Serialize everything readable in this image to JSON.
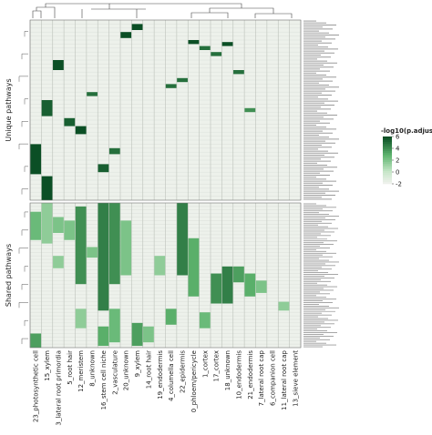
{
  "chart_data": {
    "type": "heatmap",
    "title": "",
    "xlabel": "",
    "ylabel": "",
    "x_categories": [
      "23_photosynthetic cell",
      "15_xylem",
      "3_lateral root primordia",
      "5_root hair",
      "12_meristem",
      "8_unknown",
      "16_stem cell niche",
      "2_vasculature",
      "20_unknown",
      "9_xylem",
      "14_root hair",
      "19_endodermis",
      "4_columella cell",
      "22_epidermis",
      "0_phloem/pericycle",
      "1_cortex",
      "17_cortex",
      "18_unknown",
      "10_endodermis",
      "21_endodermis",
      "7_lateral root cap",
      "6_companion cell",
      "11_lateral root cap",
      "13_sieve element"
    ],
    "row_groups": [
      {
        "label": "Unique pathways",
        "row_count": 90
      },
      {
        "label": "Shared pathways",
        "row_count": 82
      }
    ],
    "legend": {
      "title": "-log10(p.adjust)",
      "ticks": [
        6,
        4,
        2,
        0,
        -2
      ],
      "range": [
        -2,
        6
      ],
      "colors": {
        "high": "#0b4f25",
        "mid": "#5fb56f",
        "low": "#c6e6c8",
        "base": "#edf1eb"
      },
      "placement": "right"
    },
    "unique_cells": [
      {
        "col": 0,
        "rows": [
          62,
          76
        ],
        "value": 6
      },
      {
        "col": 1,
        "rows": [
          40,
          47
        ],
        "value": 5.5
      },
      {
        "col": 1,
        "rows": [
          78,
          89
        ],
        "value": 6
      },
      {
        "col": 2,
        "rows": [
          20,
          24
        ],
        "value": 6
      },
      {
        "col": 3,
        "rows": [
          49,
          52
        ],
        "value": 5.5
      },
      {
        "col": 4,
        "rows": [
          53,
          56
        ],
        "value": 6
      },
      {
        "col": 5,
        "rows": [
          36,
          37
        ],
        "value": 5
      },
      {
        "col": 6,
        "rows": [
          72,
          75
        ],
        "value": 5.5
      },
      {
        "col": 7,
        "rows": [
          64,
          66
        ],
        "value": 5
      },
      {
        "col": 8,
        "rows": [
          6,
          8
        ],
        "value": 6
      },
      {
        "col": 9,
        "rows": [
          2,
          4
        ],
        "value": 6
      },
      {
        "col": 12,
        "rows": [
          32,
          33
        ],
        "value": 5
      },
      {
        "col": 13,
        "rows": [
          29,
          30
        ],
        "value": 5
      },
      {
        "col": 14,
        "rows": [
          10,
          11
        ],
        "value": 6
      },
      {
        "col": 15,
        "rows": [
          13,
          14
        ],
        "value": 5
      },
      {
        "col": 16,
        "rows": [
          16,
          17
        ],
        "value": 5
      },
      {
        "col": 17,
        "rows": [
          11,
          12
        ],
        "value": 6
      },
      {
        "col": 18,
        "rows": [
          25,
          26
        ],
        "value": 5
      },
      {
        "col": 19,
        "rows": [
          44,
          45
        ],
        "value": 4
      }
    ],
    "shared_cells": [
      {
        "col": 0,
        "rows": [
          5,
          20
        ],
        "value": 2.5
      },
      {
        "col": 0,
        "rows": [
          74,
          81
        ],
        "value": 3.5
      },
      {
        "col": 1,
        "rows": [
          0,
          22
        ],
        "value": 1.5
      },
      {
        "col": 2,
        "rows": [
          8,
          16
        ],
        "value": 2
      },
      {
        "col": 2,
        "rows": [
          30,
          36
        ],
        "value": 1.5
      },
      {
        "col": 3,
        "rows": [
          10,
          20
        ],
        "value": 2
      },
      {
        "col": 4,
        "rows": [
          2,
          45
        ],
        "value": 4
      },
      {
        "col": 4,
        "rows": [
          60,
          70
        ],
        "value": 1.5
      },
      {
        "col": 5,
        "rows": [
          25,
          30
        ],
        "value": 2
      },
      {
        "col": 6,
        "rows": [
          0,
          60
        ],
        "value": 4.5
      },
      {
        "col": 6,
        "rows": [
          70,
          80
        ],
        "value": 3
      },
      {
        "col": 7,
        "rows": [
          0,
          45
        ],
        "value": 4
      },
      {
        "col": 7,
        "rows": [
          60,
          78
        ],
        "value": 2.5
      },
      {
        "col": 8,
        "rows": [
          10,
          40
        ],
        "value": 2
      },
      {
        "col": 9,
        "rows": [
          68,
          80
        ],
        "value": 3.5
      },
      {
        "col": 10,
        "rows": [
          70,
          78
        ],
        "value": 2
      },
      {
        "col": 11,
        "rows": [
          30,
          40
        ],
        "value": 1.5
      },
      {
        "col": 12,
        "rows": [
          60,
          68
        ],
        "value": 3
      },
      {
        "col": 13,
        "rows": [
          0,
          40
        ],
        "value": 4.5
      },
      {
        "col": 14,
        "rows": [
          20,
          52
        ],
        "value": 3
      },
      {
        "col": 15,
        "rows": [
          62,
          70
        ],
        "value": 2.5
      },
      {
        "col": 16,
        "rows": [
          40,
          56
        ],
        "value": 4
      },
      {
        "col": 17,
        "rows": [
          36,
          56
        ],
        "value": 4.5
      },
      {
        "col": 18,
        "rows": [
          36,
          44
        ],
        "value": 3.5
      },
      {
        "col": 19,
        "rows": [
          40,
          52
        ],
        "value": 3
      },
      {
        "col": 20,
        "rows": [
          44,
          50
        ],
        "value": 2
      },
      {
        "col": 22,
        "rows": [
          56,
          60
        ],
        "value": 1.5
      }
    ]
  }
}
